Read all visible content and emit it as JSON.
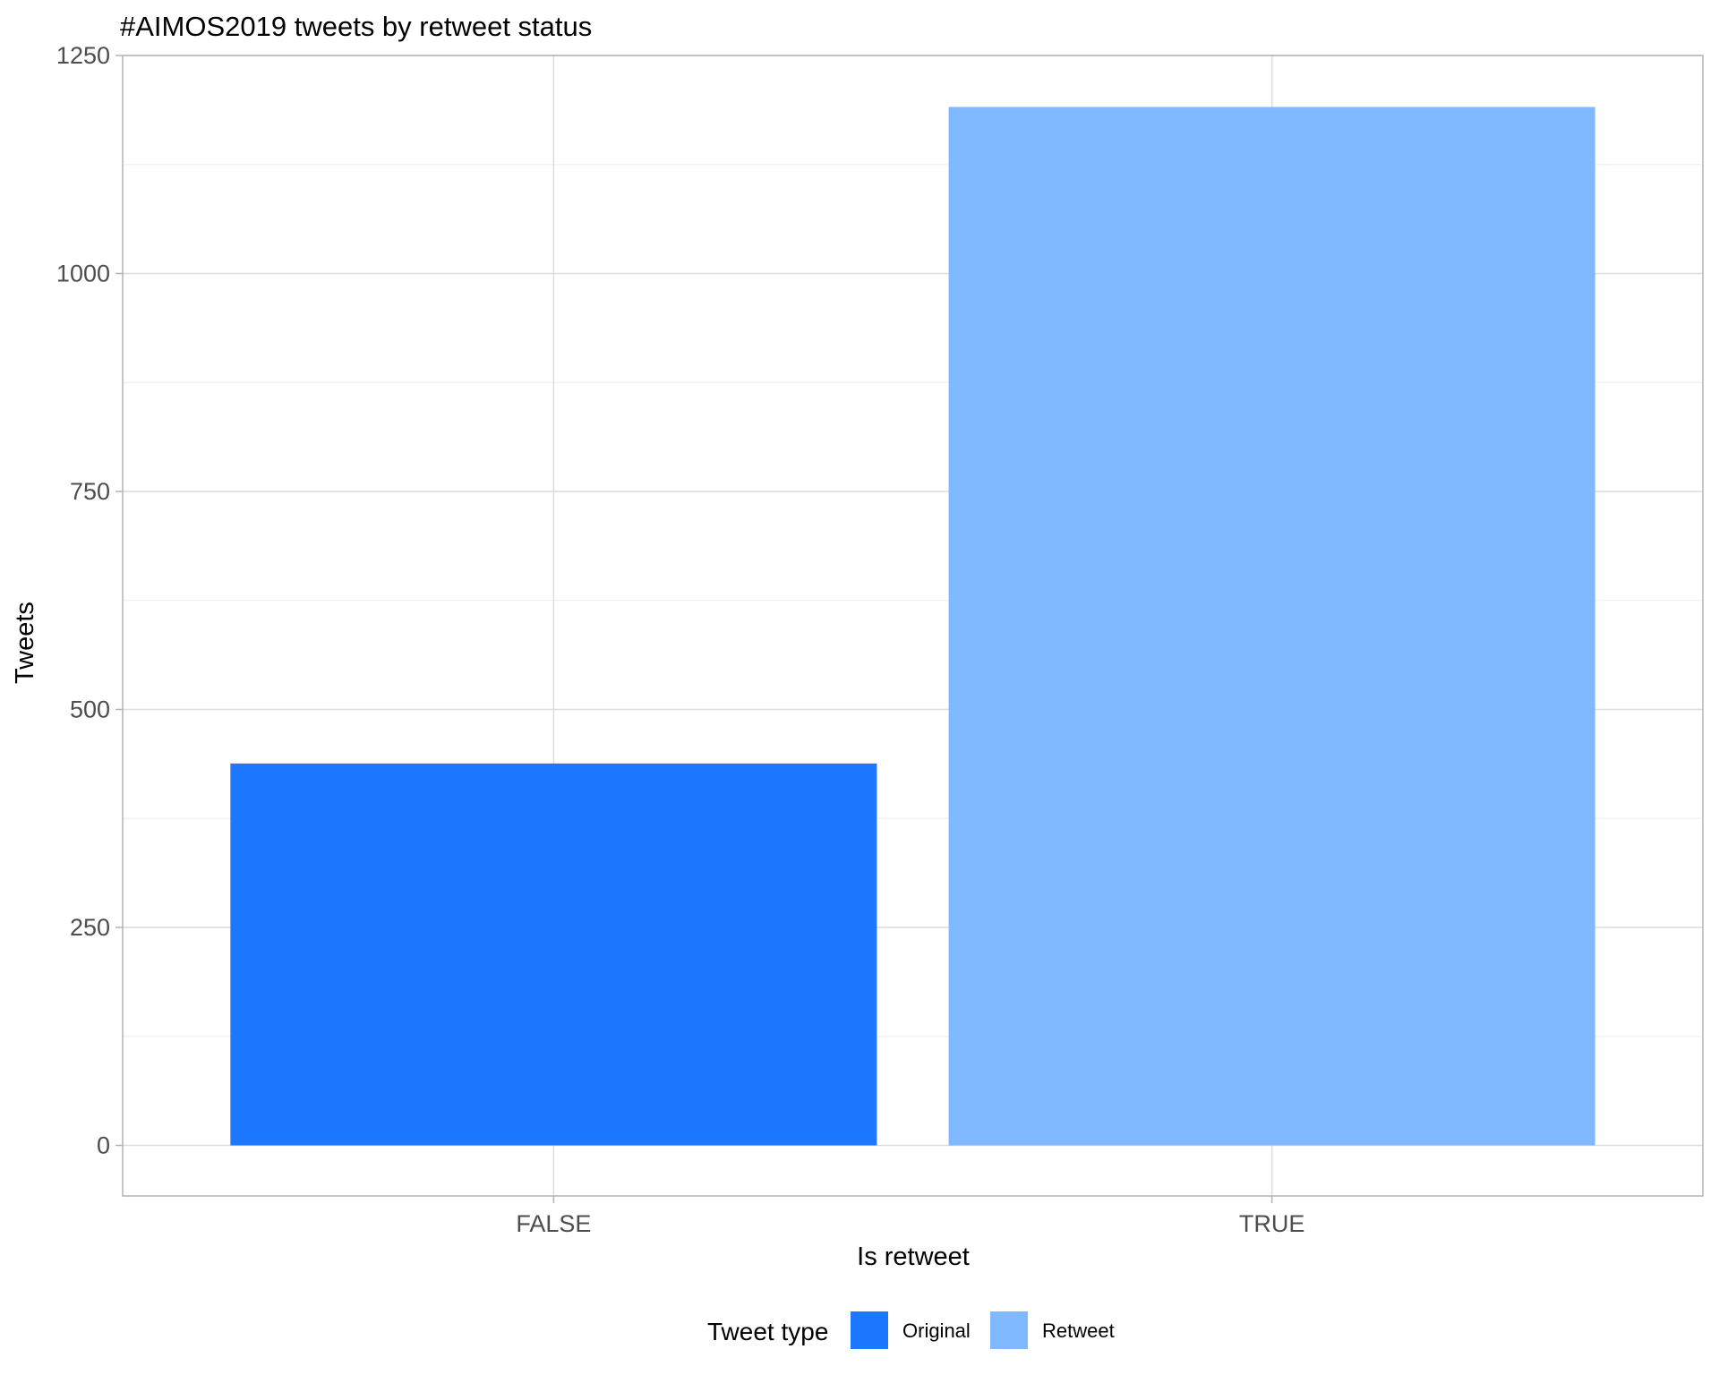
{
  "chart_data": {
    "type": "bar",
    "title": "#AIMOS2019 tweets by retweet status",
    "xlabel": "Is retweet",
    "ylabel": "Tweets",
    "categories": [
      "FALSE",
      "TRUE"
    ],
    "values": [
      438,
      1191
    ],
    "colors": [
      "#1C78FF",
      "#80B9FF"
    ],
    "ylim": [
      -58,
      1250
    ],
    "yticks": [
      0,
      250,
      500,
      750,
      1000,
      1250
    ],
    "ytick_labels": [
      "0",
      "250",
      "500",
      "750",
      "1000",
      "1250"
    ],
    "grid": true,
    "legend": {
      "title": "Tweet type",
      "position": "bottom",
      "entries": [
        {
          "label": "Original",
          "color": "#1C78FF"
        },
        {
          "label": "Retweet",
          "color": "#80B9FF"
        }
      ]
    }
  }
}
